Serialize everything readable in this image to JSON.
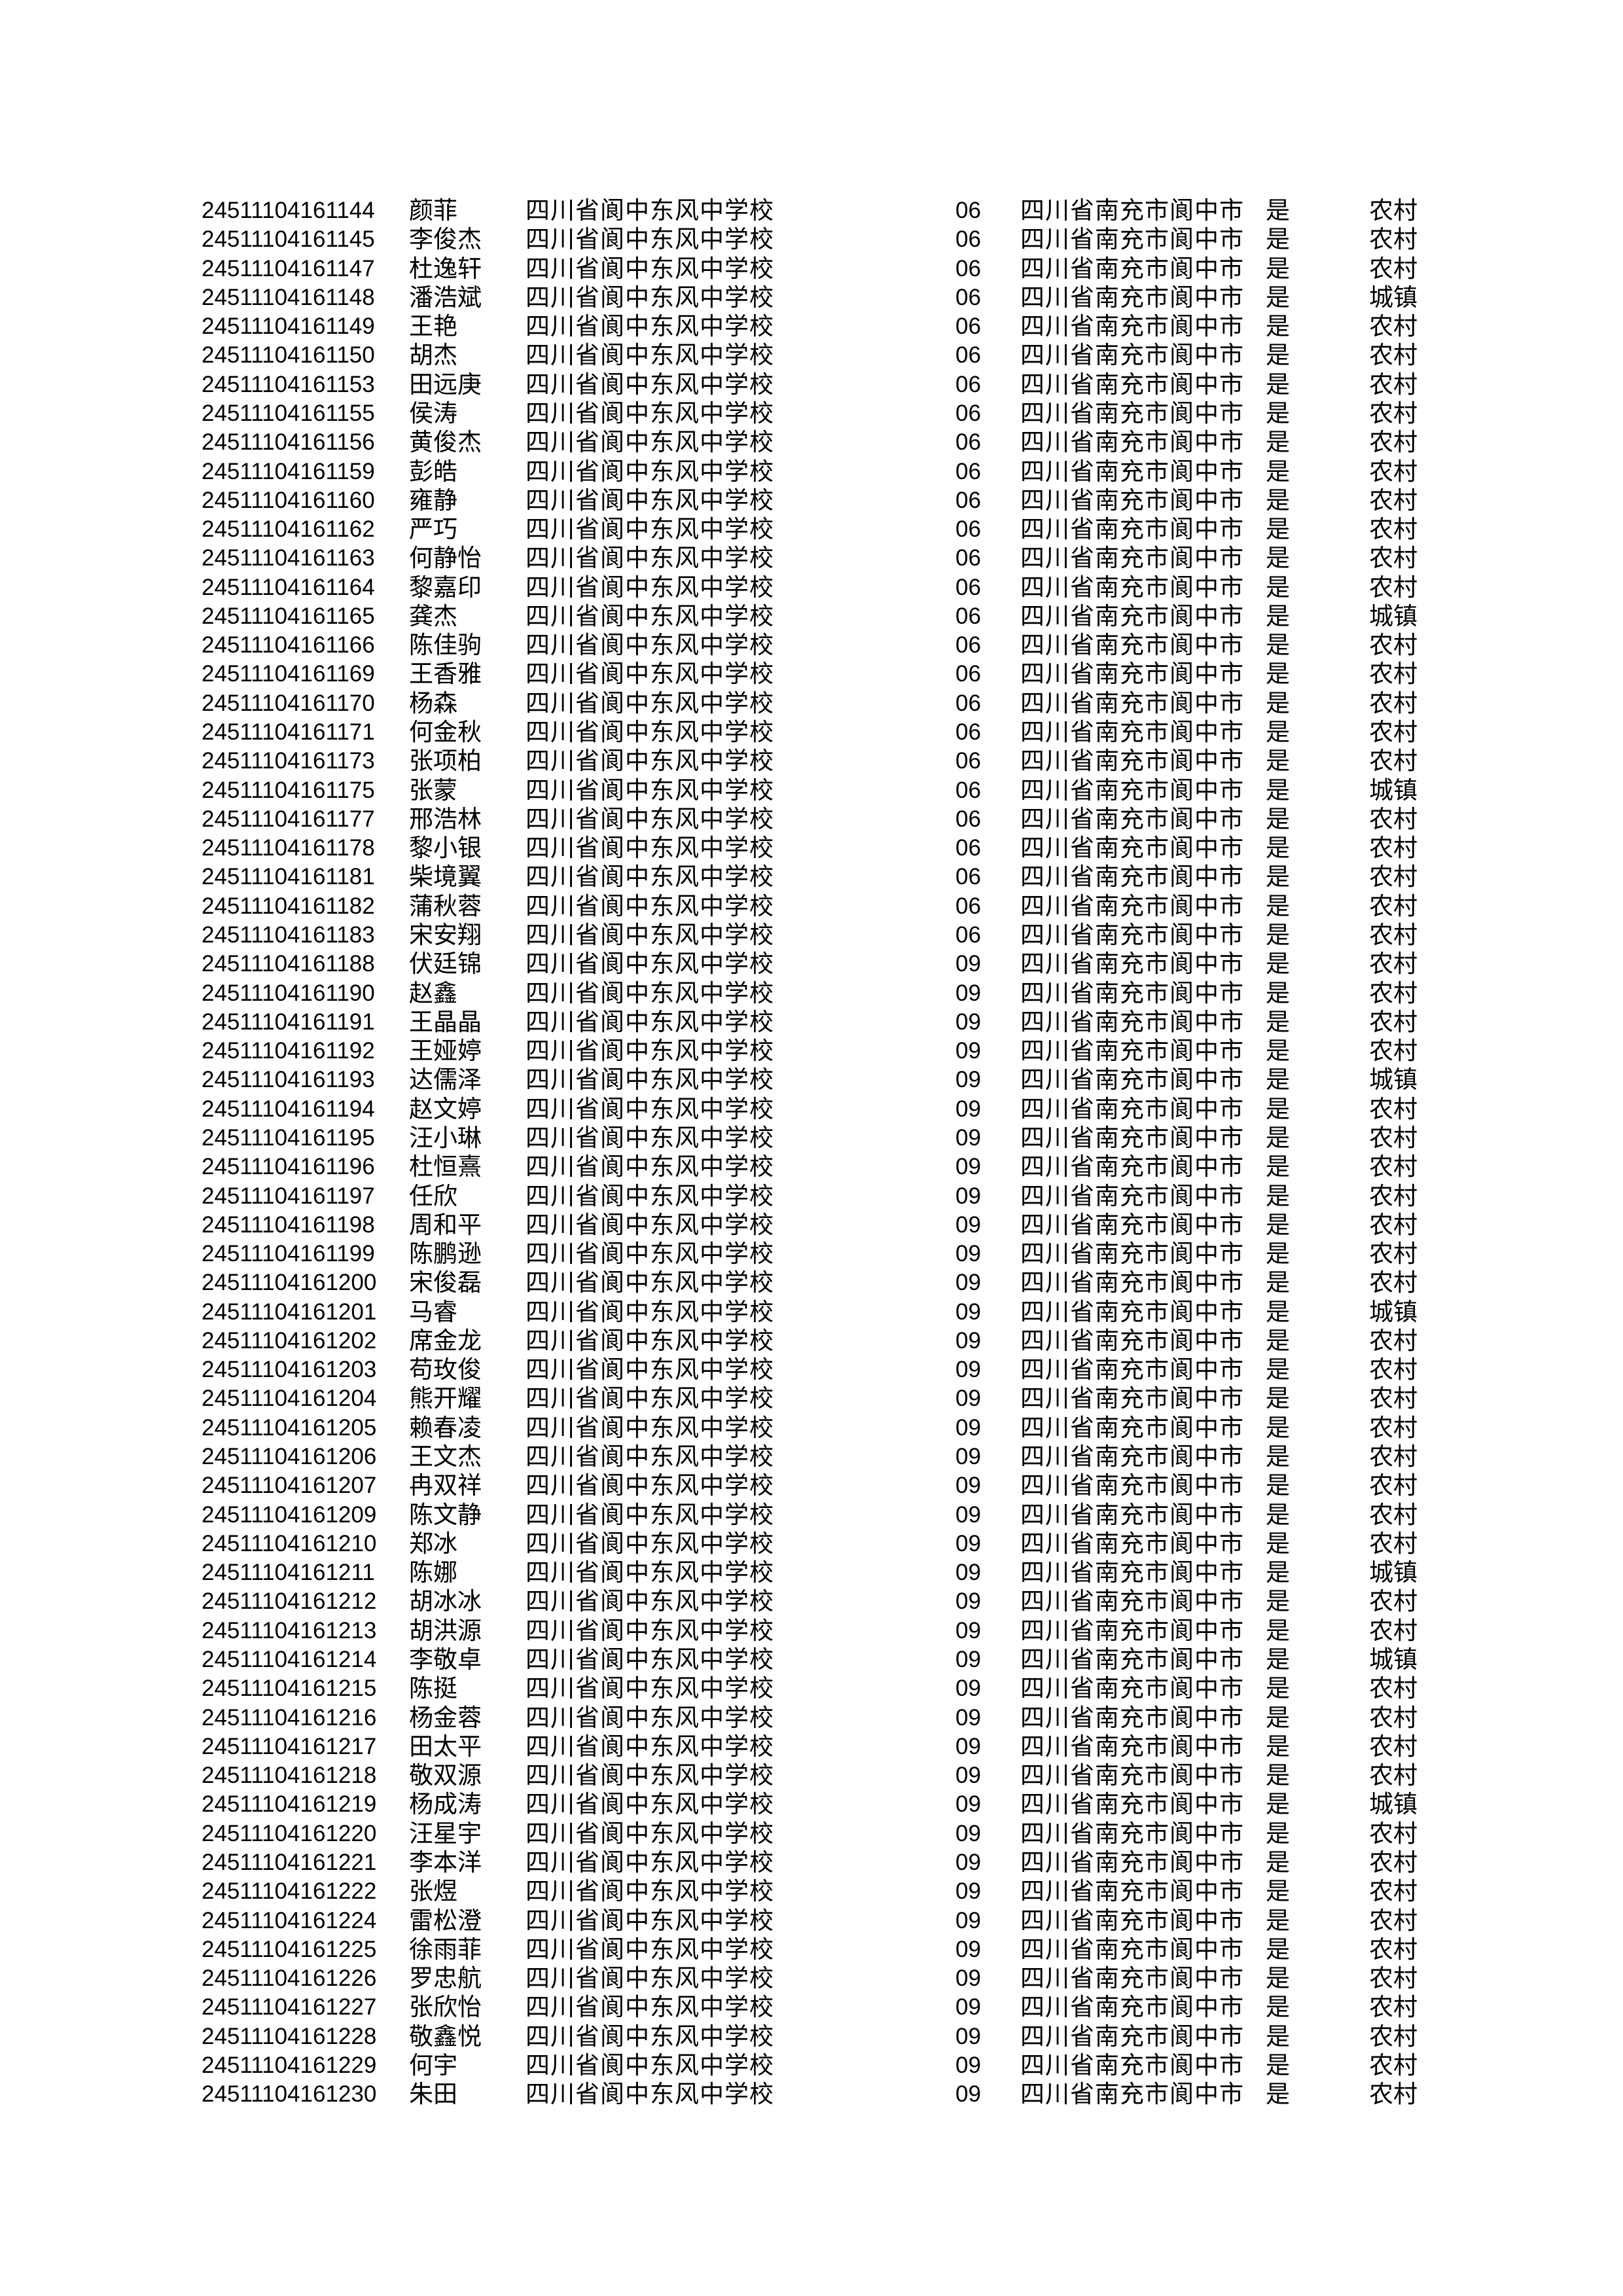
{
  "rows": [
    [
      "24511104161144",
      "颜菲",
      "四川省阆中东风中学校",
      "06",
      "四川省南充市阆中市",
      "是",
      "农村"
    ],
    [
      "24511104161145",
      "李俊杰",
      "四川省阆中东风中学校",
      "06",
      "四川省南充市阆中市",
      "是",
      "农村"
    ],
    [
      "24511104161147",
      "杜逸轩",
      "四川省阆中东风中学校",
      "06",
      "四川省南充市阆中市",
      "是",
      "农村"
    ],
    [
      "24511104161148",
      "潘浩斌",
      "四川省阆中东风中学校",
      "06",
      "四川省南充市阆中市",
      "是",
      "城镇"
    ],
    [
      "24511104161149",
      "王艳",
      "四川省阆中东风中学校",
      "06",
      "四川省南充市阆中市",
      "是",
      "农村"
    ],
    [
      "24511104161150",
      "胡杰",
      "四川省阆中东风中学校",
      "06",
      "四川省南充市阆中市",
      "是",
      "农村"
    ],
    [
      "24511104161153",
      "田远庚",
      "四川省阆中东风中学校",
      "06",
      "四川省南充市阆中市",
      "是",
      "农村"
    ],
    [
      "24511104161155",
      "侯涛",
      "四川省阆中东风中学校",
      "06",
      "四川省南充市阆中市",
      "是",
      "农村"
    ],
    [
      "24511104161156",
      "黄俊杰",
      "四川省阆中东风中学校",
      "06",
      "四川省南充市阆中市",
      "是",
      "农村"
    ],
    [
      "24511104161159",
      "彭皓",
      "四川省阆中东风中学校",
      "06",
      "四川省南充市阆中市",
      "是",
      "农村"
    ],
    [
      "24511104161160",
      "雍静",
      "四川省阆中东风中学校",
      "06",
      "四川省南充市阆中市",
      "是",
      "农村"
    ],
    [
      "24511104161162",
      "严巧",
      "四川省阆中东风中学校",
      "06",
      "四川省南充市阆中市",
      "是",
      "农村"
    ],
    [
      "24511104161163",
      "何静怡",
      "四川省阆中东风中学校",
      "06",
      "四川省南充市阆中市",
      "是",
      "农村"
    ],
    [
      "24511104161164",
      "黎嘉印",
      "四川省阆中东风中学校",
      "06",
      "四川省南充市阆中市",
      "是",
      "农村"
    ],
    [
      "24511104161165",
      "龚杰",
      "四川省阆中东风中学校",
      "06",
      "四川省南充市阆中市",
      "是",
      "城镇"
    ],
    [
      "24511104161166",
      "陈佳驹",
      "四川省阆中东风中学校",
      "06",
      "四川省南充市阆中市",
      "是",
      "农村"
    ],
    [
      "24511104161169",
      "王香雅",
      "四川省阆中东风中学校",
      "06",
      "四川省南充市阆中市",
      "是",
      "农村"
    ],
    [
      "24511104161170",
      "杨森",
      "四川省阆中东风中学校",
      "06",
      "四川省南充市阆中市",
      "是",
      "农村"
    ],
    [
      "24511104161171",
      "何金秋",
      "四川省阆中东风中学校",
      "06",
      "四川省南充市阆中市",
      "是",
      "农村"
    ],
    [
      "24511104161173",
      "张项柏",
      "四川省阆中东风中学校",
      "06",
      "四川省南充市阆中市",
      "是",
      "农村"
    ],
    [
      "24511104161175",
      "张蒙",
      "四川省阆中东风中学校",
      "06",
      "四川省南充市阆中市",
      "是",
      "城镇"
    ],
    [
      "24511104161177",
      "邢浩林",
      "四川省阆中东风中学校",
      "06",
      "四川省南充市阆中市",
      "是",
      "农村"
    ],
    [
      "24511104161178",
      "黎小银",
      "四川省阆中东风中学校",
      "06",
      "四川省南充市阆中市",
      "是",
      "农村"
    ],
    [
      "24511104161181",
      "柴境翼",
      "四川省阆中东风中学校",
      "06",
      "四川省南充市阆中市",
      "是",
      "农村"
    ],
    [
      "24511104161182",
      "蒲秋蓉",
      "四川省阆中东风中学校",
      "06",
      "四川省南充市阆中市",
      "是",
      "农村"
    ],
    [
      "24511104161183",
      "宋安翔",
      "四川省阆中东风中学校",
      "06",
      "四川省南充市阆中市",
      "是",
      "农村"
    ],
    [
      "24511104161188",
      "伏廷锦",
      "四川省阆中东风中学校",
      "09",
      "四川省南充市阆中市",
      "是",
      "农村"
    ],
    [
      "24511104161190",
      "赵鑫",
      "四川省阆中东风中学校",
      "09",
      "四川省南充市阆中市",
      "是",
      "农村"
    ],
    [
      "24511104161191",
      "王晶晶",
      "四川省阆中东风中学校",
      "09",
      "四川省南充市阆中市",
      "是",
      "农村"
    ],
    [
      "24511104161192",
      "王娅婷",
      "四川省阆中东风中学校",
      "09",
      "四川省南充市阆中市",
      "是",
      "农村"
    ],
    [
      "24511104161193",
      "达儒泽",
      "四川省阆中东风中学校",
      "09",
      "四川省南充市阆中市",
      "是",
      "城镇"
    ],
    [
      "24511104161194",
      "赵文婷",
      "四川省阆中东风中学校",
      "09",
      "四川省南充市阆中市",
      "是",
      "农村"
    ],
    [
      "24511104161195",
      "汪小琳",
      "四川省阆中东风中学校",
      "09",
      "四川省南充市阆中市",
      "是",
      "农村"
    ],
    [
      "24511104161196",
      "杜恒熹",
      "四川省阆中东风中学校",
      "09",
      "四川省南充市阆中市",
      "是",
      "农村"
    ],
    [
      "24511104161197",
      "任欣",
      "四川省阆中东风中学校",
      "09",
      "四川省南充市阆中市",
      "是",
      "农村"
    ],
    [
      "24511104161198",
      "周和平",
      "四川省阆中东风中学校",
      "09",
      "四川省南充市阆中市",
      "是",
      "农村"
    ],
    [
      "24511104161199",
      "陈鹏逊",
      "四川省阆中东风中学校",
      "09",
      "四川省南充市阆中市",
      "是",
      "农村"
    ],
    [
      "24511104161200",
      "宋俊磊",
      "四川省阆中东风中学校",
      "09",
      "四川省南充市阆中市",
      "是",
      "农村"
    ],
    [
      "24511104161201",
      "马睿",
      "四川省阆中东风中学校",
      "09",
      "四川省南充市阆中市",
      "是",
      "城镇"
    ],
    [
      "24511104161202",
      "席金龙",
      "四川省阆中东风中学校",
      "09",
      "四川省南充市阆中市",
      "是",
      "农村"
    ],
    [
      "24511104161203",
      "苟玫俊",
      "四川省阆中东风中学校",
      "09",
      "四川省南充市阆中市",
      "是",
      "农村"
    ],
    [
      "24511104161204",
      "熊开耀",
      "四川省阆中东风中学校",
      "09",
      "四川省南充市阆中市",
      "是",
      "农村"
    ],
    [
      "24511104161205",
      "赖春凌",
      "四川省阆中东风中学校",
      "09",
      "四川省南充市阆中市",
      "是",
      "农村"
    ],
    [
      "24511104161206",
      "王文杰",
      "四川省阆中东风中学校",
      "09",
      "四川省南充市阆中市",
      "是",
      "农村"
    ],
    [
      "24511104161207",
      "冉双祥",
      "四川省阆中东风中学校",
      "09",
      "四川省南充市阆中市",
      "是",
      "农村"
    ],
    [
      "24511104161209",
      "陈文静",
      "四川省阆中东风中学校",
      "09",
      "四川省南充市阆中市",
      "是",
      "农村"
    ],
    [
      "24511104161210",
      "郑冰",
      "四川省阆中东风中学校",
      "09",
      "四川省南充市阆中市",
      "是",
      "农村"
    ],
    [
      "24511104161211",
      "陈娜",
      "四川省阆中东风中学校",
      "09",
      "四川省南充市阆中市",
      "是",
      "城镇"
    ],
    [
      "24511104161212",
      "胡冰冰",
      "四川省阆中东风中学校",
      "09",
      "四川省南充市阆中市",
      "是",
      "农村"
    ],
    [
      "24511104161213",
      "胡洪源",
      "四川省阆中东风中学校",
      "09",
      "四川省南充市阆中市",
      "是",
      "农村"
    ],
    [
      "24511104161214",
      "李敬卓",
      "四川省阆中东风中学校",
      "09",
      "四川省南充市阆中市",
      "是",
      "城镇"
    ],
    [
      "24511104161215",
      "陈挺",
      "四川省阆中东风中学校",
      "09",
      "四川省南充市阆中市",
      "是",
      "农村"
    ],
    [
      "24511104161216",
      "杨金蓉",
      "四川省阆中东风中学校",
      "09",
      "四川省南充市阆中市",
      "是",
      "农村"
    ],
    [
      "24511104161217",
      "田太平",
      "四川省阆中东风中学校",
      "09",
      "四川省南充市阆中市",
      "是",
      "农村"
    ],
    [
      "24511104161218",
      "敬双源",
      "四川省阆中东风中学校",
      "09",
      "四川省南充市阆中市",
      "是",
      "农村"
    ],
    [
      "24511104161219",
      "杨成涛",
      "四川省阆中东风中学校",
      "09",
      "四川省南充市阆中市",
      "是",
      "城镇"
    ],
    [
      "24511104161220",
      "汪星宇",
      "四川省阆中东风中学校",
      "09",
      "四川省南充市阆中市",
      "是",
      "农村"
    ],
    [
      "24511104161221",
      "李本洋",
      "四川省阆中东风中学校",
      "09",
      "四川省南充市阆中市",
      "是",
      "农村"
    ],
    [
      "24511104161222",
      "张煜",
      "四川省阆中东风中学校",
      "09",
      "四川省南充市阆中市",
      "是",
      "农村"
    ],
    [
      "24511104161224",
      "雷松澄",
      "四川省阆中东风中学校",
      "09",
      "四川省南充市阆中市",
      "是",
      "农村"
    ],
    [
      "24511104161225",
      "徐雨菲",
      "四川省阆中东风中学校",
      "09",
      "四川省南充市阆中市",
      "是",
      "农村"
    ],
    [
      "24511104161226",
      "罗忠航",
      "四川省阆中东风中学校",
      "09",
      "四川省南充市阆中市",
      "是",
      "农村"
    ],
    [
      "24511104161227",
      "张欣怡",
      "四川省阆中东风中学校",
      "09",
      "四川省南充市阆中市",
      "是",
      "农村"
    ],
    [
      "24511104161228",
      "敬鑫悦",
      "四川省阆中东风中学校",
      "09",
      "四川省南充市阆中市",
      "是",
      "农村"
    ],
    [
      "24511104161229",
      "何宇",
      "四川省阆中东风中学校",
      "09",
      "四川省南充市阆中市",
      "是",
      "农村"
    ],
    [
      "24511104161230",
      "朱田",
      "四川省阆中东风中学校",
      "09",
      "四川省南充市阆中市",
      "是",
      "农村"
    ]
  ]
}
